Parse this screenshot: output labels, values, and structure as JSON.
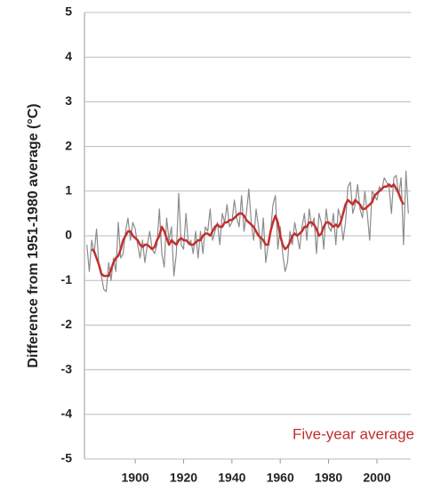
{
  "chart_data": {
    "type": "line",
    "y_label": "Difference from 1951-1980 average (°C)",
    "annotation": "Five-year average",
    "xlim": [
      1879,
      2014
    ],
    "ylim": [
      -5,
      5
    ],
    "xticks": [
      1900,
      1920,
      1940,
      1960,
      1980,
      2000
    ],
    "yticks": [
      -5,
      -4,
      -3,
      -2,
      -1,
      0,
      1,
      2,
      3,
      4,
      5
    ],
    "grid": true,
    "x": [
      1880,
      1881,
      1882,
      1883,
      1884,
      1885,
      1886,
      1887,
      1888,
      1889,
      1890,
      1891,
      1892,
      1893,
      1894,
      1895,
      1896,
      1897,
      1898,
      1899,
      1900,
      1901,
      1902,
      1903,
      1904,
      1905,
      1906,
      1907,
      1908,
      1909,
      1910,
      1911,
      1912,
      1913,
      1914,
      1915,
      1916,
      1917,
      1918,
      1919,
      1920,
      1921,
      1922,
      1923,
      1924,
      1925,
      1926,
      1927,
      1928,
      1929,
      1930,
      1931,
      1932,
      1933,
      1934,
      1935,
      1936,
      1937,
      1938,
      1939,
      1940,
      1941,
      1942,
      1943,
      1944,
      1945,
      1946,
      1947,
      1948,
      1949,
      1950,
      1951,
      1952,
      1953,
      1954,
      1955,
      1956,
      1957,
      1958,
      1959,
      1960,
      1961,
      1962,
      1963,
      1964,
      1965,
      1966,
      1967,
      1968,
      1969,
      1970,
      1971,
      1972,
      1973,
      1974,
      1975,
      1976,
      1977,
      1978,
      1979,
      1980,
      1981,
      1982,
      1983,
      1984,
      1985,
      1986,
      1987,
      1988,
      1989,
      1990,
      1991,
      1992,
      1993,
      1994,
      1995,
      1996,
      1997,
      1998,
      1999,
      2000,
      2001,
      2002,
      2003,
      2004,
      2005,
      2006,
      2007,
      2008,
      2009,
      2010,
      2011,
      2012,
      2013
    ],
    "series": [
      {
        "color": "#8c8c8c",
        "values": [
          -0.2,
          -0.8,
          -0.1,
          -0.4,
          0.15,
          -0.7,
          -0.9,
          -1.2,
          -1.25,
          -0.6,
          -1.0,
          -0.5,
          -0.8,
          0.3,
          -0.5,
          -0.4,
          0.1,
          0.4,
          -0.1,
          0.3,
          0.15,
          -0.2,
          -0.5,
          -0.1,
          -0.6,
          -0.2,
          0.1,
          -0.3,
          -0.4,
          -0.2,
          0.6,
          -0.4,
          -0.7,
          0.4,
          -0.1,
          0.2,
          -0.9,
          -0.4,
          0.95,
          -0.2,
          -0.3,
          0.5,
          -0.2,
          -0.1,
          -0.4,
          0.1,
          -0.5,
          0.1,
          -0.4,
          0.2,
          0.1,
          0.6,
          -0.1,
          0.1,
          0.3,
          -0.2,
          0.5,
          0.3,
          0.7,
          0.2,
          0.3,
          0.8,
          0.4,
          0.2,
          0.9,
          0.1,
          0.5,
          1.05,
          0.3,
          -0.1,
          0.6,
          0.2,
          -0.3,
          0.4,
          -0.6,
          -0.2,
          0.1,
          0.7,
          0.9,
          -0.3,
          0.2,
          -0.4,
          -0.8,
          -0.6,
          0.1,
          -0.2,
          0.3,
          0.0,
          -0.3,
          0.2,
          0.5,
          -0.1,
          0.6,
          0.2,
          0.4,
          -0.4,
          0.5,
          0.3,
          -0.3,
          0.6,
          0.2,
          0.1,
          0.5,
          -0.2,
          0.6,
          0.4,
          -0.1,
          0.3,
          1.1,
          1.2,
          0.5,
          0.7,
          1.15,
          0.6,
          0.4,
          1.0,
          0.5,
          -0.1,
          1.0,
          0.9,
          0.8,
          1.1,
          1.0,
          1.3,
          1.2,
          1.1,
          0.5,
          1.3,
          1.35,
          0.9,
          1.3,
          -0.2,
          1.45,
          0.5
        ]
      },
      {
        "name": "Five-year average",
        "color": "#c0302f",
        "values": [
          null,
          null,
          -0.3,
          -0.35,
          -0.5,
          -0.65,
          -0.85,
          -0.9,
          -0.9,
          -0.9,
          -0.75,
          -0.6,
          -0.5,
          -0.45,
          -0.3,
          -0.1,
          0.0,
          0.1,
          0.1,
          0.0,
          -0.05,
          -0.1,
          -0.2,
          -0.25,
          -0.2,
          -0.2,
          -0.25,
          -0.3,
          -0.25,
          -0.1,
          0.0,
          0.2,
          0.1,
          -0.05,
          -0.2,
          -0.1,
          -0.15,
          -0.2,
          -0.1,
          -0.05,
          -0.1,
          -0.1,
          -0.15,
          -0.2,
          -0.2,
          -0.15,
          -0.1,
          -0.1,
          0.0,
          0.05,
          0.05,
          0.0,
          0.1,
          0.2,
          0.25,
          0.2,
          0.2,
          0.3,
          0.3,
          0.35,
          0.35,
          0.4,
          0.45,
          0.5,
          0.5,
          0.45,
          0.35,
          0.3,
          0.25,
          0.2,
          0.1,
          0.0,
          -0.05,
          -0.1,
          -0.2,
          -0.2,
          0.1,
          0.3,
          0.45,
          0.3,
          0.0,
          -0.2,
          -0.3,
          -0.25,
          -0.15,
          0.0,
          0.05,
          0.0,
          0.05,
          0.1,
          0.2,
          0.2,
          0.3,
          0.3,
          0.25,
          0.15,
          0.0,
          0.05,
          0.2,
          0.3,
          0.3,
          0.25,
          0.2,
          0.25,
          0.2,
          0.3,
          0.5,
          0.7,
          0.8,
          0.75,
          0.7,
          0.8,
          0.75,
          0.7,
          0.6,
          0.6,
          0.65,
          0.7,
          0.75,
          0.9,
          0.95,
          1.0,
          1.05,
          1.1,
          1.1,
          1.15,
          1.1,
          1.15,
          1.05,
          0.95,
          0.8,
          0.7,
          null,
          null
        ]
      }
    ]
  }
}
